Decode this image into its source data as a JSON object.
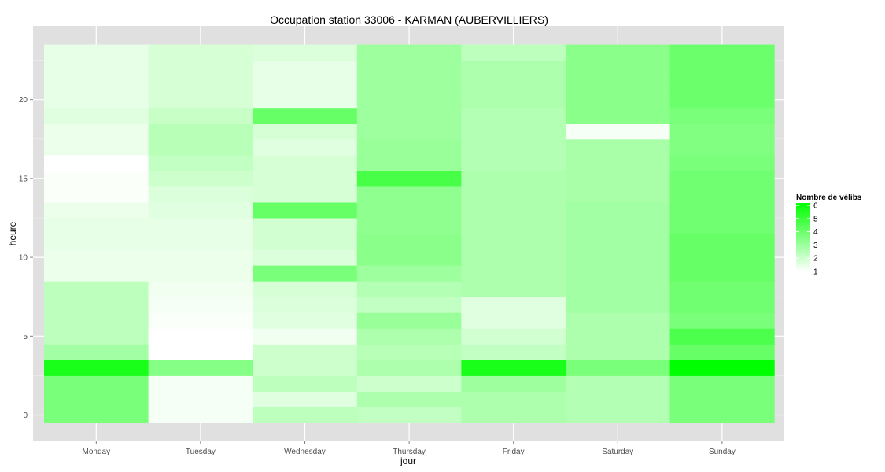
{
  "chart_data": {
    "type": "heatmap",
    "title": "Occupation station 33006 - KARMAN (AUBERVILLIERS)",
    "xlabel": "jour",
    "ylabel": "heure",
    "x_categories": [
      "Monday",
      "Tuesday",
      "Wednesday",
      "Thursday",
      "Friday",
      "Saturday",
      "Sunday"
    ],
    "y_ticks": [
      0,
      5,
      10,
      15,
      20
    ],
    "y_range": [
      0,
      23
    ],
    "values": [
      [
        3.6,
        1.2,
        2.3,
        2.2,
        2.6,
        2.5,
        3.6
      ],
      [
        3.6,
        1.2,
        1.6,
        2.6,
        2.6,
        2.5,
        3.6
      ],
      [
        3.6,
        1.2,
        2.3,
        2.0,
        2.9,
        2.5,
        3.6
      ],
      [
        5.5,
        3.4,
        2.0,
        2.6,
        5.5,
        3.6,
        6.0
      ],
      [
        2.8,
        1.0,
        2.0,
        2.4,
        2.2,
        2.6,
        4.0
      ],
      [
        2.3,
        1.0,
        1.3,
        2.6,
        1.9,
        2.6,
        4.5
      ],
      [
        2.3,
        1.1,
        1.6,
        3.0,
        1.6,
        2.6,
        3.6
      ],
      [
        2.3,
        1.2,
        1.7,
        2.2,
        1.6,
        2.8,
        3.8
      ],
      [
        2.3,
        1.3,
        1.8,
        2.5,
        2.6,
        2.8,
        3.8
      ],
      [
        1.4,
        1.4,
        3.6,
        2.9,
        2.6,
        2.8,
        4.0
      ],
      [
        1.4,
        1.4,
        1.7,
        3.3,
        2.6,
        2.8,
        4.0
      ],
      [
        1.5,
        1.5,
        1.9,
        3.3,
        2.6,
        2.8,
        4.0
      ],
      [
        1.5,
        1.5,
        1.9,
        3.2,
        2.6,
        2.8,
        3.8
      ],
      [
        1.4,
        1.6,
        4.0,
        3.2,
        2.6,
        2.8,
        3.8
      ],
      [
        1.1,
        1.7,
        1.8,
        3.2,
        2.6,
        2.7,
        3.8
      ],
      [
        1.1,
        2.0,
        1.8,
        4.6,
        2.6,
        2.7,
        3.8
      ],
      [
        1.0,
        2.2,
        1.8,
        3.0,
        2.5,
        2.7,
        3.6
      ],
      [
        1.4,
        2.4,
        1.6,
        3.0,
        2.5,
        2.7,
        3.5
      ],
      [
        1.4,
        2.4,
        1.8,
        2.9,
        2.5,
        1.2,
        3.5
      ],
      [
        1.6,
        2.1,
        4.0,
        2.9,
        2.5,
        3.3,
        3.6
      ],
      [
        1.5,
        1.8,
        1.5,
        2.9,
        2.6,
        3.3,
        3.9
      ],
      [
        1.5,
        1.8,
        1.5,
        2.9,
        2.6,
        3.3,
        3.9
      ],
      [
        1.5,
        1.8,
        1.5,
        2.9,
        2.6,
        3.3,
        3.9
      ],
      [
        1.5,
        1.8,
        1.7,
        2.9,
        2.3,
        3.3,
        3.9
      ]
    ],
    "legend": {
      "title": "Nombre de vélibs",
      "min": 1,
      "max": 6,
      "labels": [
        "6",
        "5",
        "4",
        "3",
        "2",
        "1"
      ],
      "low_color": "#ffffff",
      "high_color": "#00ff00"
    },
    "panel_background": "#e0e0e0",
    "grid": true
  }
}
